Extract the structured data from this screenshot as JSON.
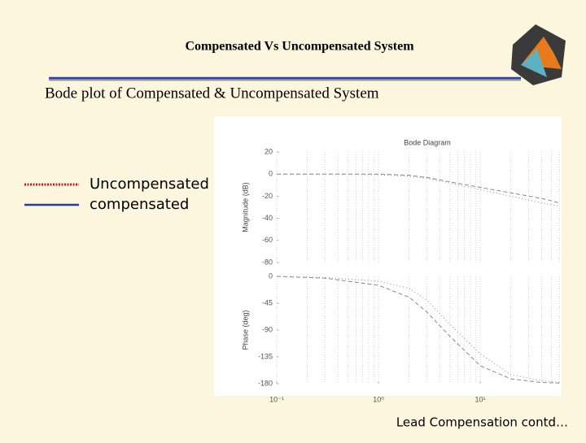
{
  "header": {
    "title": "Compensated Vs Uncompensated System"
  },
  "subtitle": "Bode plot of Compensated & Uncompensated System",
  "legend": [
    {
      "name": "Uncompensated",
      "color": "#c0202a",
      "style": "dotted"
    },
    {
      "name": "compensated",
      "color": "#1f3f9f",
      "style": "solid"
    }
  ],
  "footer": "Lead Compensation contd…",
  "chart_data": [
    {
      "type": "line",
      "title": "Bode Diagram",
      "y_label": "Magnitude (dB)",
      "log_x": true,
      "grid": true,
      "x": [
        0.1,
        0.3,
        1,
        2,
        3,
        5,
        10,
        20,
        40,
        60
      ],
      "series": [
        {
          "name": "Uncompensated",
          "color": "#8a8a8a",
          "dash": "1 3",
          "values": [
            0,
            0,
            -0.5,
            -2,
            -4,
            -8,
            -14,
            -20,
            -26,
            -29
          ]
        },
        {
          "name": "compensated",
          "color": "#8a8a8a",
          "dash": "5 3",
          "values": [
            0,
            0,
            0,
            -1,
            -3,
            -7,
            -12,
            -17,
            -22,
            -26
          ]
        }
      ],
      "xlim": [
        0.1,
        63
      ],
      "ylim": [
        -80,
        20
      ],
      "yticks": [
        20,
        0,
        -20,
        -40,
        -60,
        -80
      ]
    },
    {
      "type": "line",
      "y_label": "Phase (deg)",
      "log_x": true,
      "grid": true,
      "x": [
        0.1,
        0.3,
        1,
        2,
        3,
        5,
        10,
        20,
        40,
        60
      ],
      "series": [
        {
          "name": "Uncompensated",
          "color": "#8a8a8a",
          "dash": "1 3",
          "values": [
            0,
            -2,
            -8,
            -20,
            -40,
            -80,
            -130,
            -165,
            -175,
            -178
          ]
        },
        {
          "name": "compensated",
          "color": "#8a8a8a",
          "dash": "5 3",
          "values": [
            0,
            -3,
            -15,
            -35,
            -60,
            -100,
            -150,
            -172,
            -178,
            -179
          ]
        }
      ],
      "xlim": [
        0.1,
        63
      ],
      "ylim": [
        -180,
        0
      ],
      "yticks": [
        0,
        -45,
        -90,
        -135,
        -180
      ],
      "xticks": [
        {
          "value": 0.1,
          "label": "10⁻¹"
        },
        {
          "value": 1,
          "label": "10⁰"
        },
        {
          "value": 10,
          "label": "10¹"
        }
      ]
    }
  ]
}
